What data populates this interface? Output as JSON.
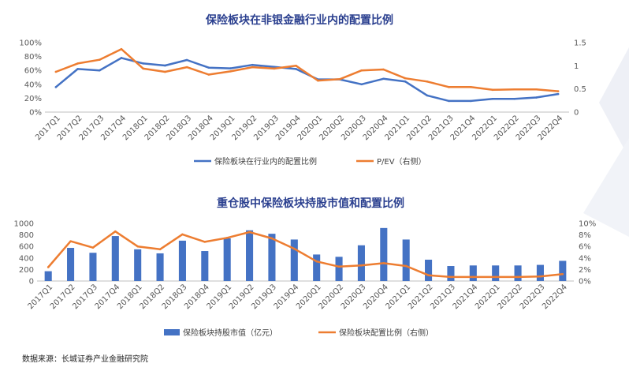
{
  "colors": {
    "blue": "#4472c4",
    "orange": "#ed7d31",
    "title": "#2a3f8f",
    "deco": "#eef0f6"
  },
  "source": "数据来源：长城证券产业金融研究院",
  "chart_data": [
    {
      "type": "line",
      "title": "保险板块在非银金融行业内的配置比例",
      "categories": [
        "2017Q1",
        "2017Q2",
        "2017Q3",
        "2017Q4",
        "2018Q1",
        "2018Q2",
        "2018Q3",
        "2018Q4",
        "2019Q1",
        "2019Q2",
        "2019Q3",
        "2019Q4",
        "2020Q1",
        "2020Q2",
        "2020Q3",
        "2020Q4",
        "2021Q1",
        "2021Q2",
        "2021Q3",
        "2021Q4",
        "2022Q1",
        "2022Q2",
        "2022Q3",
        "2022Q4"
      ],
      "y_left": {
        "ylim": [
          0,
          100
        ],
        "ticks": [
          "0%",
          "20%",
          "40%",
          "60%",
          "80%",
          "100%"
        ]
      },
      "y_right": {
        "ylim": [
          0,
          1.5
        ],
        "ticks": [
          "0",
          "0.5",
          "1",
          "1.5"
        ]
      },
      "grid": false,
      "legend_position": "bottom",
      "series": [
        {
          "name": "保险板块在行业内的配置比例",
          "axis": "left",
          "color": "#4472c4",
          "values": [
            36,
            62,
            60,
            78,
            70,
            67,
            75,
            64,
            63,
            68,
            65,
            62,
            47,
            47,
            40,
            48,
            44,
            24,
            16,
            16,
            19,
            19,
            21,
            26
          ]
        },
        {
          "name": "P/EV（右侧）",
          "axis": "right",
          "color": "#ed7d31",
          "values": [
            0.87,
            1.05,
            1.13,
            1.36,
            0.94,
            0.87,
            0.97,
            0.81,
            0.88,
            0.97,
            0.94,
            1.0,
            0.68,
            0.71,
            0.9,
            0.92,
            0.73,
            0.66,
            0.54,
            0.54,
            0.48,
            0.49,
            0.49,
            0.45
          ]
        }
      ]
    },
    {
      "type": "bar",
      "title": "重仓股中保险板块持股市值和配置比例",
      "categories": [
        "2017Q1",
        "2017Q2",
        "2017Q3",
        "2017Q4",
        "2018Q1",
        "2018Q2",
        "2018Q3",
        "2018Q4",
        "2019Q1",
        "2019Q2",
        "2019Q3",
        "2019Q4",
        "2020Q1",
        "2020Q2",
        "2020Q3",
        "2020Q4",
        "2021Q1",
        "2021Q2",
        "2021Q3",
        "2021Q4",
        "2022Q1",
        "2022Q2",
        "2022Q3",
        "2022Q4"
      ],
      "y_left": {
        "ylim": [
          0,
          1000
        ],
        "ticks": [
          "0",
          "200",
          "400",
          "600",
          "800",
          "1000"
        ]
      },
      "y_right": {
        "ylim": [
          0,
          10
        ],
        "ticks": [
          "0%",
          "2%",
          "4%",
          "6%",
          "8%",
          "10%"
        ]
      },
      "grid": false,
      "legend_position": "bottom",
      "series": [
        {
          "name": "保险板块持股市值（亿元）",
          "axis": "left",
          "kind": "bar",
          "color": "#4472c4",
          "values": [
            170,
            575,
            490,
            780,
            550,
            480,
            700,
            520,
            740,
            880,
            820,
            720,
            460,
            420,
            620,
            920,
            720,
            370,
            260,
            270,
            270,
            270,
            280,
            350
          ]
        },
        {
          "name": "保险板块配置比例（右侧）",
          "axis": "right",
          "kind": "line",
          "color": "#ed7d31",
          "values": [
            2.4,
            6.9,
            5.8,
            8.6,
            6.0,
            5.5,
            8.1,
            6.8,
            7.5,
            8.5,
            7.4,
            5.6,
            3.4,
            2.5,
            2.7,
            3.1,
            2.6,
            1.0,
            0.7,
            0.7,
            0.7,
            0.7,
            0.8,
            1.2
          ]
        }
      ]
    }
  ]
}
